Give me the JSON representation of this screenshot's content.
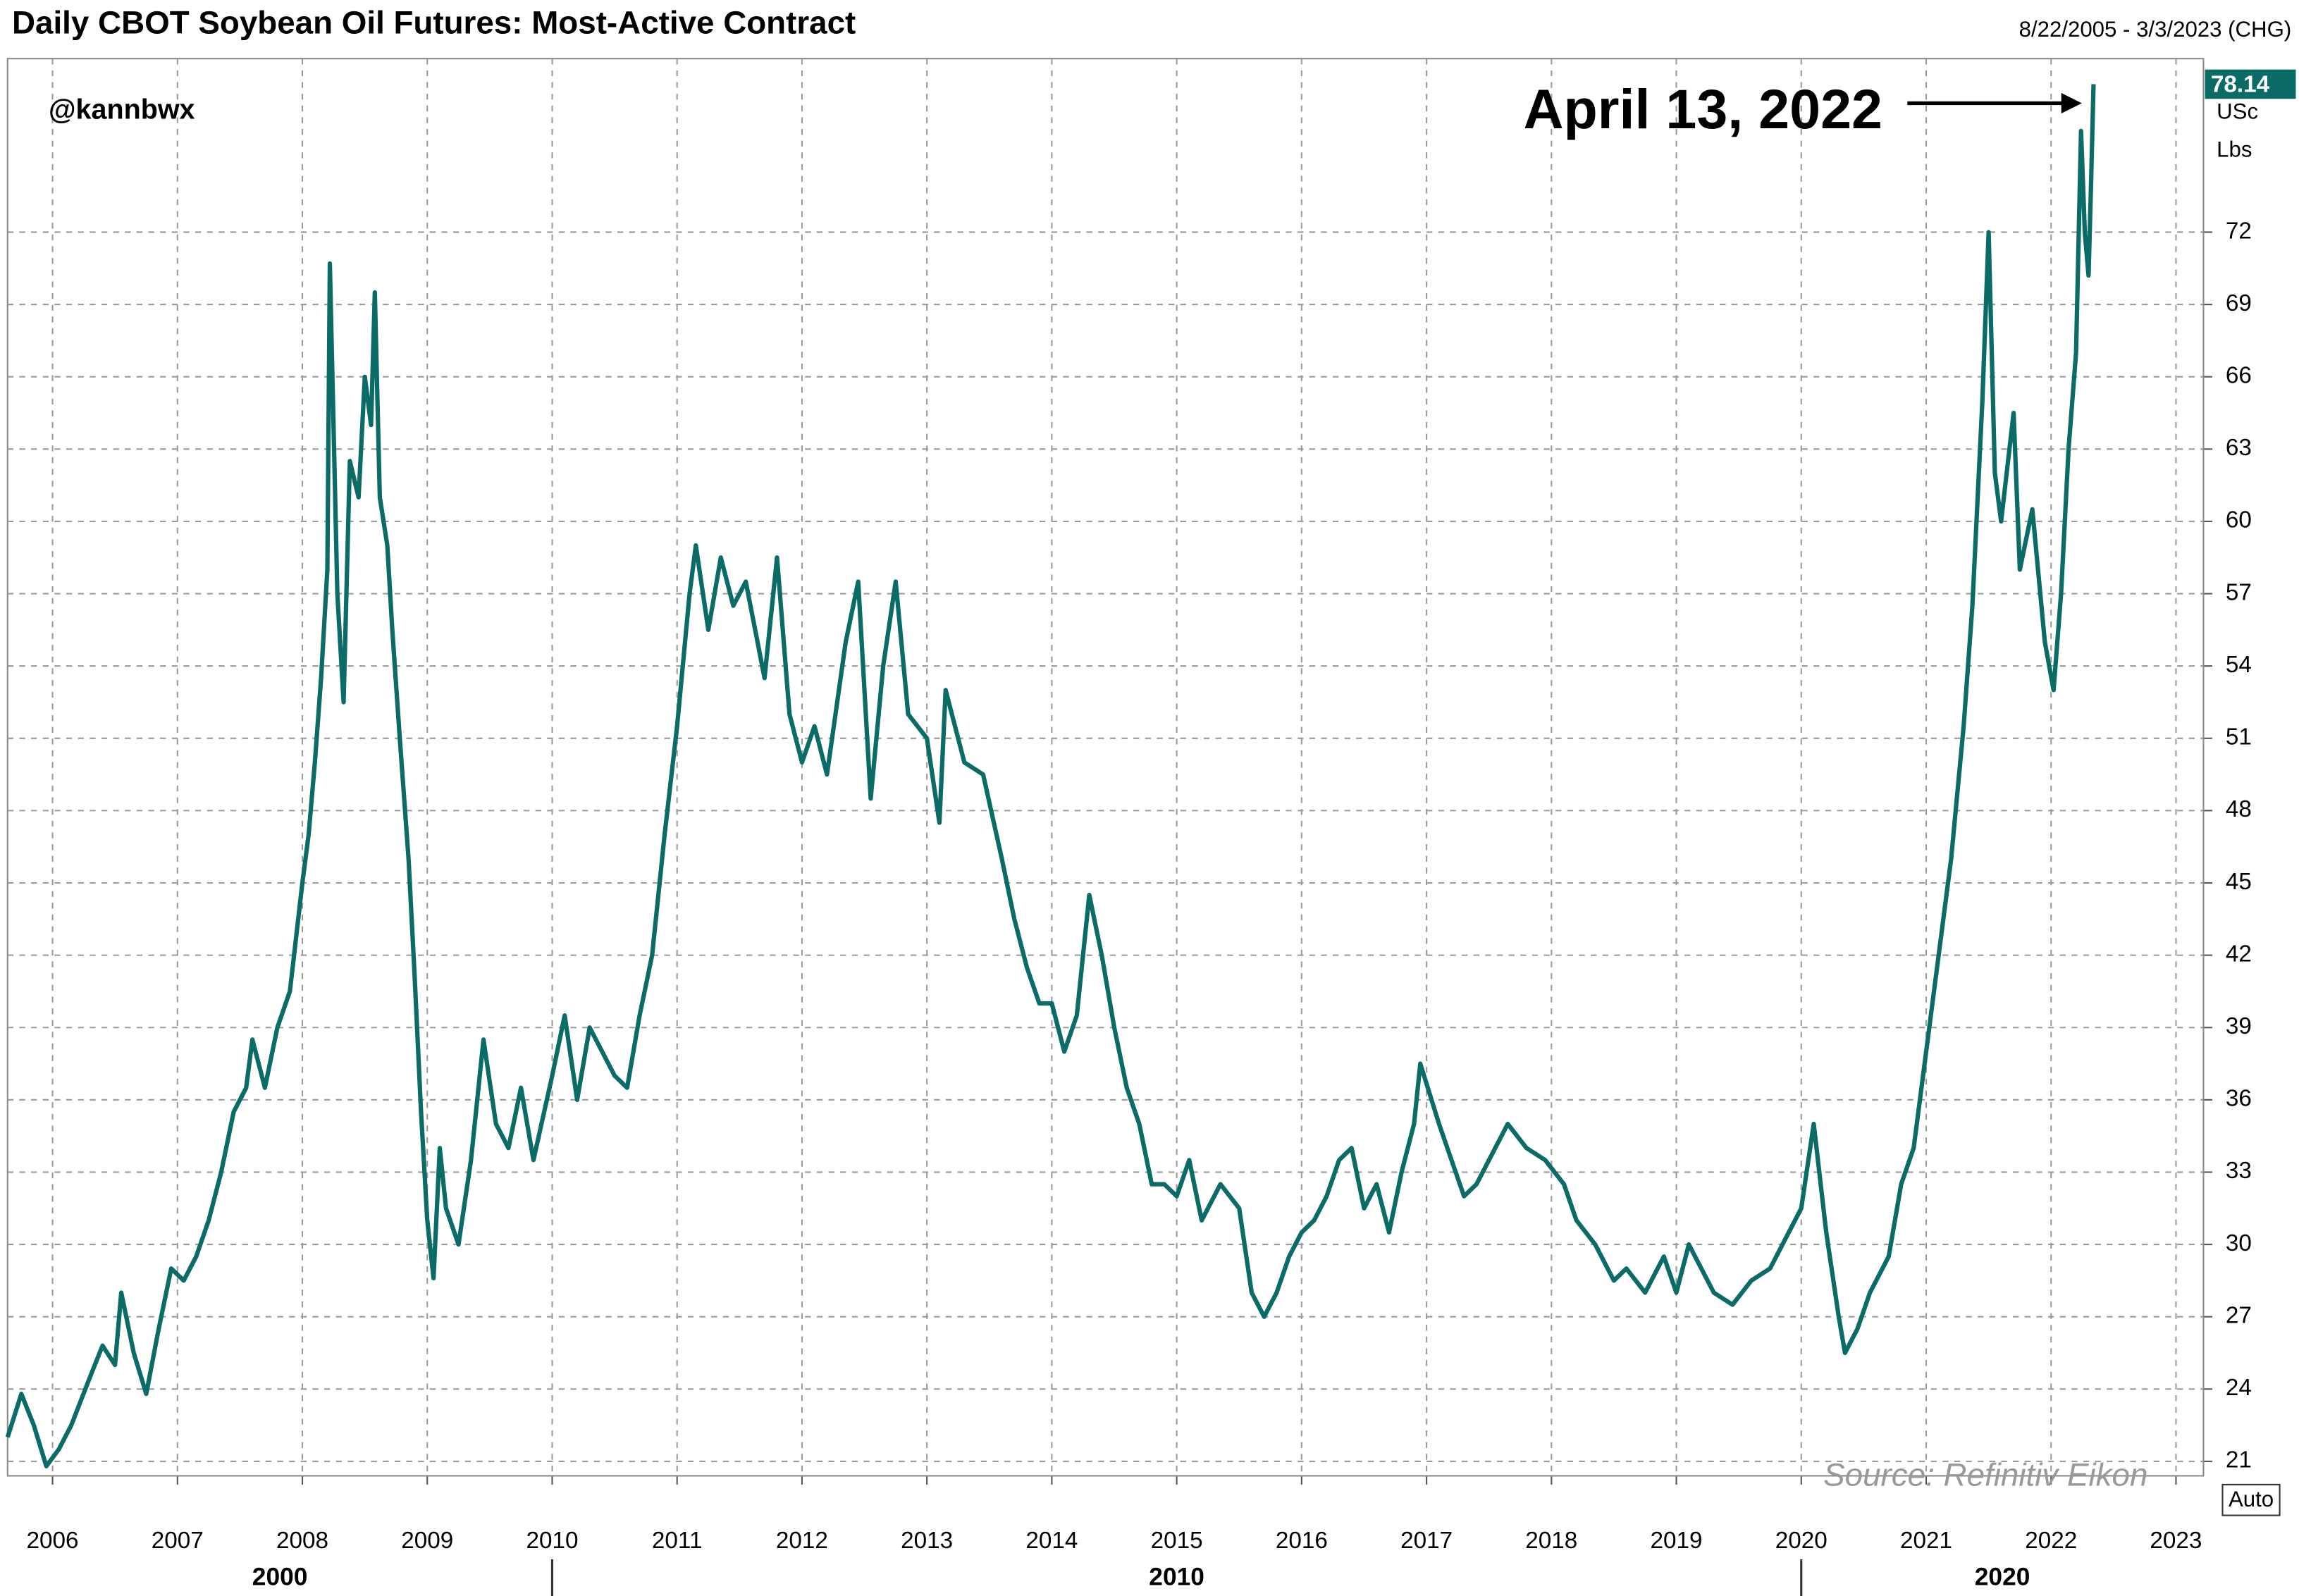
{
  "chart_data": {
    "type": "line",
    "title": "Daily CBOT Soybean Oil Futures: Most-Active Contract",
    "date_range": "8/22/2005 - 3/3/2023 (CHG)",
    "handle": "@kannbwx",
    "source": "Source: Refinitiv Eikon",
    "y_unit": [
      "USc",
      "Lbs"
    ],
    "auto_button": "Auto",
    "color": "#0b6b67",
    "grid": true,
    "xlim": [
      2005.64,
      2023.22
    ],
    "xticks": [
      2006,
      2007,
      2008,
      2009,
      2010,
      2011,
      2012,
      2013,
      2014,
      2015,
      2016,
      2017,
      2018,
      2019,
      2020,
      2021,
      2022,
      2023
    ],
    "decades": [
      2000,
      2010,
      2020
    ],
    "ylim": [
      20.4,
      79.2
    ],
    "yticks": [
      21,
      24,
      27,
      30,
      33,
      36,
      39,
      42,
      45,
      48,
      51,
      54,
      57,
      60,
      63,
      66,
      69,
      72
    ],
    "annotation": {
      "text": "April 13, 2022",
      "x": 2022.34,
      "y": 78.14
    },
    "x": [
      2005.64,
      2005.75,
      2005.85,
      2005.95,
      2006.05,
      2006.15,
      2006.3,
      2006.4,
      2006.5,
      2006.55,
      2006.65,
      2006.75,
      2006.85,
      2006.95,
      2007.05,
      2007.15,
      2007.25,
      2007.35,
      2007.45,
      2007.55,
      2007.6,
      2007.7,
      2007.8,
      2007.9,
      2008.0,
      2008.05,
      2008.1,
      2008.15,
      2008.2,
      2008.22,
      2008.28,
      2008.33,
      2008.38,
      2008.45,
      2008.5,
      2008.55,
      2008.58,
      2008.62,
      2008.68,
      2008.72,
      2008.78,
      2008.85,
      2008.9,
      2008.95,
      2009.0,
      2009.05,
      2009.1,
      2009.15,
      2009.25,
      2009.35,
      2009.45,
      2009.55,
      2009.65,
      2009.75,
      2009.85,
      2010.0,
      2010.1,
      2010.2,
      2010.3,
      2010.4,
      2010.5,
      2010.6,
      2010.7,
      2010.8,
      2010.9,
      2011.0,
      2011.1,
      2011.15,
      2011.25,
      2011.35,
      2011.45,
      2011.55,
      2011.7,
      2011.8,
      2011.9,
      2012.0,
      2012.1,
      2012.2,
      2012.35,
      2012.45,
      2012.55,
      2012.65,
      2012.75,
      2012.85,
      2013.0,
      2013.1,
      2013.15,
      2013.3,
      2013.45,
      2013.6,
      2013.7,
      2013.8,
      2013.9,
      2014.0,
      2014.1,
      2014.2,
      2014.3,
      2014.4,
      2014.5,
      2014.6,
      2014.7,
      2014.8,
      2014.9,
      2015.0,
      2015.1,
      2015.2,
      2015.35,
      2015.5,
      2015.6,
      2015.7,
      2015.8,
      2015.9,
      2016.0,
      2016.1,
      2016.2,
      2016.3,
      2016.4,
      2016.5,
      2016.6,
      2016.7,
      2016.8,
      2016.9,
      2016.95,
      2017.1,
      2017.2,
      2017.3,
      2017.4,
      2017.5,
      2017.65,
      2017.8,
      2017.95,
      2018.1,
      2018.2,
      2018.35,
      2018.5,
      2018.6,
      2018.75,
      2018.9,
      2019.0,
      2019.1,
      2019.2,
      2019.3,
      2019.45,
      2019.6,
      2019.75,
      2019.9,
      2020.0,
      2020.1,
      2020.2,
      2020.3,
      2020.35,
      2020.45,
      2020.55,
      2020.7,
      2020.8,
      2020.9,
      2021.0,
      2021.1,
      2021.2,
      2021.3,
      2021.37,
      2021.45,
      2021.5,
      2021.55,
      2021.6,
      2021.7,
      2021.75,
      2021.85,
      2021.95,
      2022.02,
      2022.08,
      2022.14,
      2022.2,
      2022.24,
      2022.27,
      2022.3,
      2022.32,
      2022.34
    ],
    "values": [
      22.0,
      23.8,
      22.5,
      20.8,
      21.5,
      22.5,
      24.5,
      25.8,
      25.0,
      28.0,
      25.5,
      23.8,
      26.5,
      29.0,
      28.5,
      29.5,
      31.0,
      33.0,
      35.5,
      36.5,
      38.5,
      36.5,
      39.0,
      40.5,
      45.0,
      47.0,
      50.0,
      53.5,
      58.0,
      70.7,
      57.0,
      52.5,
      62.5,
      61.0,
      66.0,
      64.0,
      69.5,
      61.0,
      59.0,
      55.5,
      51.0,
      46.0,
      41.0,
      35.5,
      31.0,
      28.6,
      34.0,
      31.5,
      30.0,
      33.5,
      38.5,
      35.0,
      34.0,
      36.5,
      33.5,
      37.0,
      39.5,
      36.0,
      39.0,
      38.0,
      37.0,
      36.5,
      39.5,
      42.0,
      47.0,
      51.5,
      57.0,
      59.0,
      55.5,
      58.5,
      56.5,
      57.5,
      53.5,
      58.5,
      52.0,
      50.0,
      51.5,
      49.5,
      55.0,
      57.5,
      48.5,
      54.0,
      57.5,
      52.0,
      51.0,
      47.5,
      53.0,
      50.0,
      49.5,
      46.0,
      43.5,
      41.5,
      40.0,
      40.0,
      38.0,
      39.5,
      44.5,
      42.0,
      39.0,
      36.5,
      35.0,
      32.5,
      32.5,
      32.0,
      33.5,
      31.0,
      32.5,
      31.5,
      28.0,
      27.0,
      28.0,
      29.5,
      30.5,
      31.0,
      32.0,
      33.5,
      34.0,
      31.5,
      32.5,
      30.5,
      33.0,
      35.0,
      37.5,
      35.0,
      33.5,
      32.0,
      32.5,
      33.5,
      35.0,
      34.0,
      33.5,
      32.5,
      31.0,
      30.0,
      28.5,
      29.0,
      28.0,
      29.5,
      28.0,
      30.0,
      29.0,
      28.0,
      27.5,
      28.5,
      29.0,
      30.5,
      31.5,
      35.0,
      30.5,
      27.0,
      25.5,
      26.5,
      28.0,
      29.5,
      32.5,
      34.0,
      38.0,
      42.0,
      46.0,
      51.5,
      56.5,
      65.0,
      72.0,
      62.0,
      60.0,
      64.5,
      58.0,
      60.5,
      55.0,
      53.0,
      57.0,
      63.0,
      67.0,
      76.2,
      72.0,
      70.2,
      74.0,
      78.14
    ]
  }
}
